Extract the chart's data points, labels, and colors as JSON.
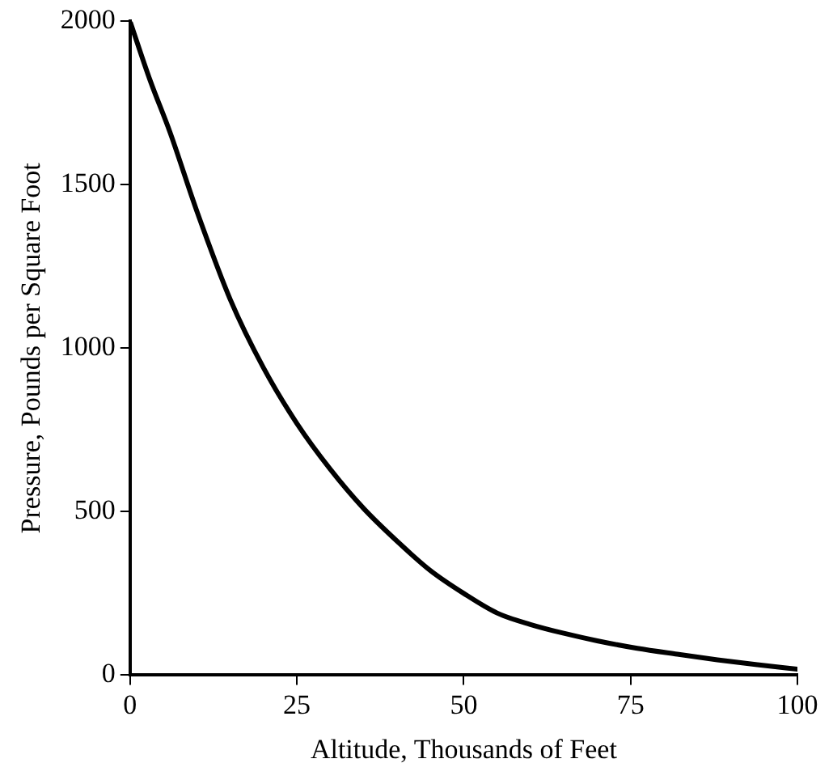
{
  "chart_data": {
    "type": "line",
    "xlabel": "Altitude, Thousands of Feet",
    "ylabel": "Pressure, Pounds per Square Foot",
    "x": [
      0,
      3,
      6,
      10,
      15,
      20,
      25,
      30,
      35,
      40,
      45,
      50,
      55,
      60,
      65,
      70,
      76,
      82,
      88,
      94,
      100
    ],
    "series": [
      {
        "color": "#000000",
        "values": [
          2000,
          1820,
          1660,
          1420,
          1150,
          940,
          770,
          630,
          510,
          410,
          320,
          250,
          190,
          155,
          128,
          105,
          82,
          64,
          47,
          32,
          18
        ]
      }
    ],
    "xlim": [
      0,
      100
    ],
    "xticks": [
      0,
      25,
      50,
      75,
      100
    ],
    "ylim": [
      0,
      2000
    ],
    "yticks": [
      0,
      500,
      1000,
      1500,
      2000
    ],
    "grid": false,
    "legend": false,
    "marker": "none",
    "line_style": "solid"
  }
}
